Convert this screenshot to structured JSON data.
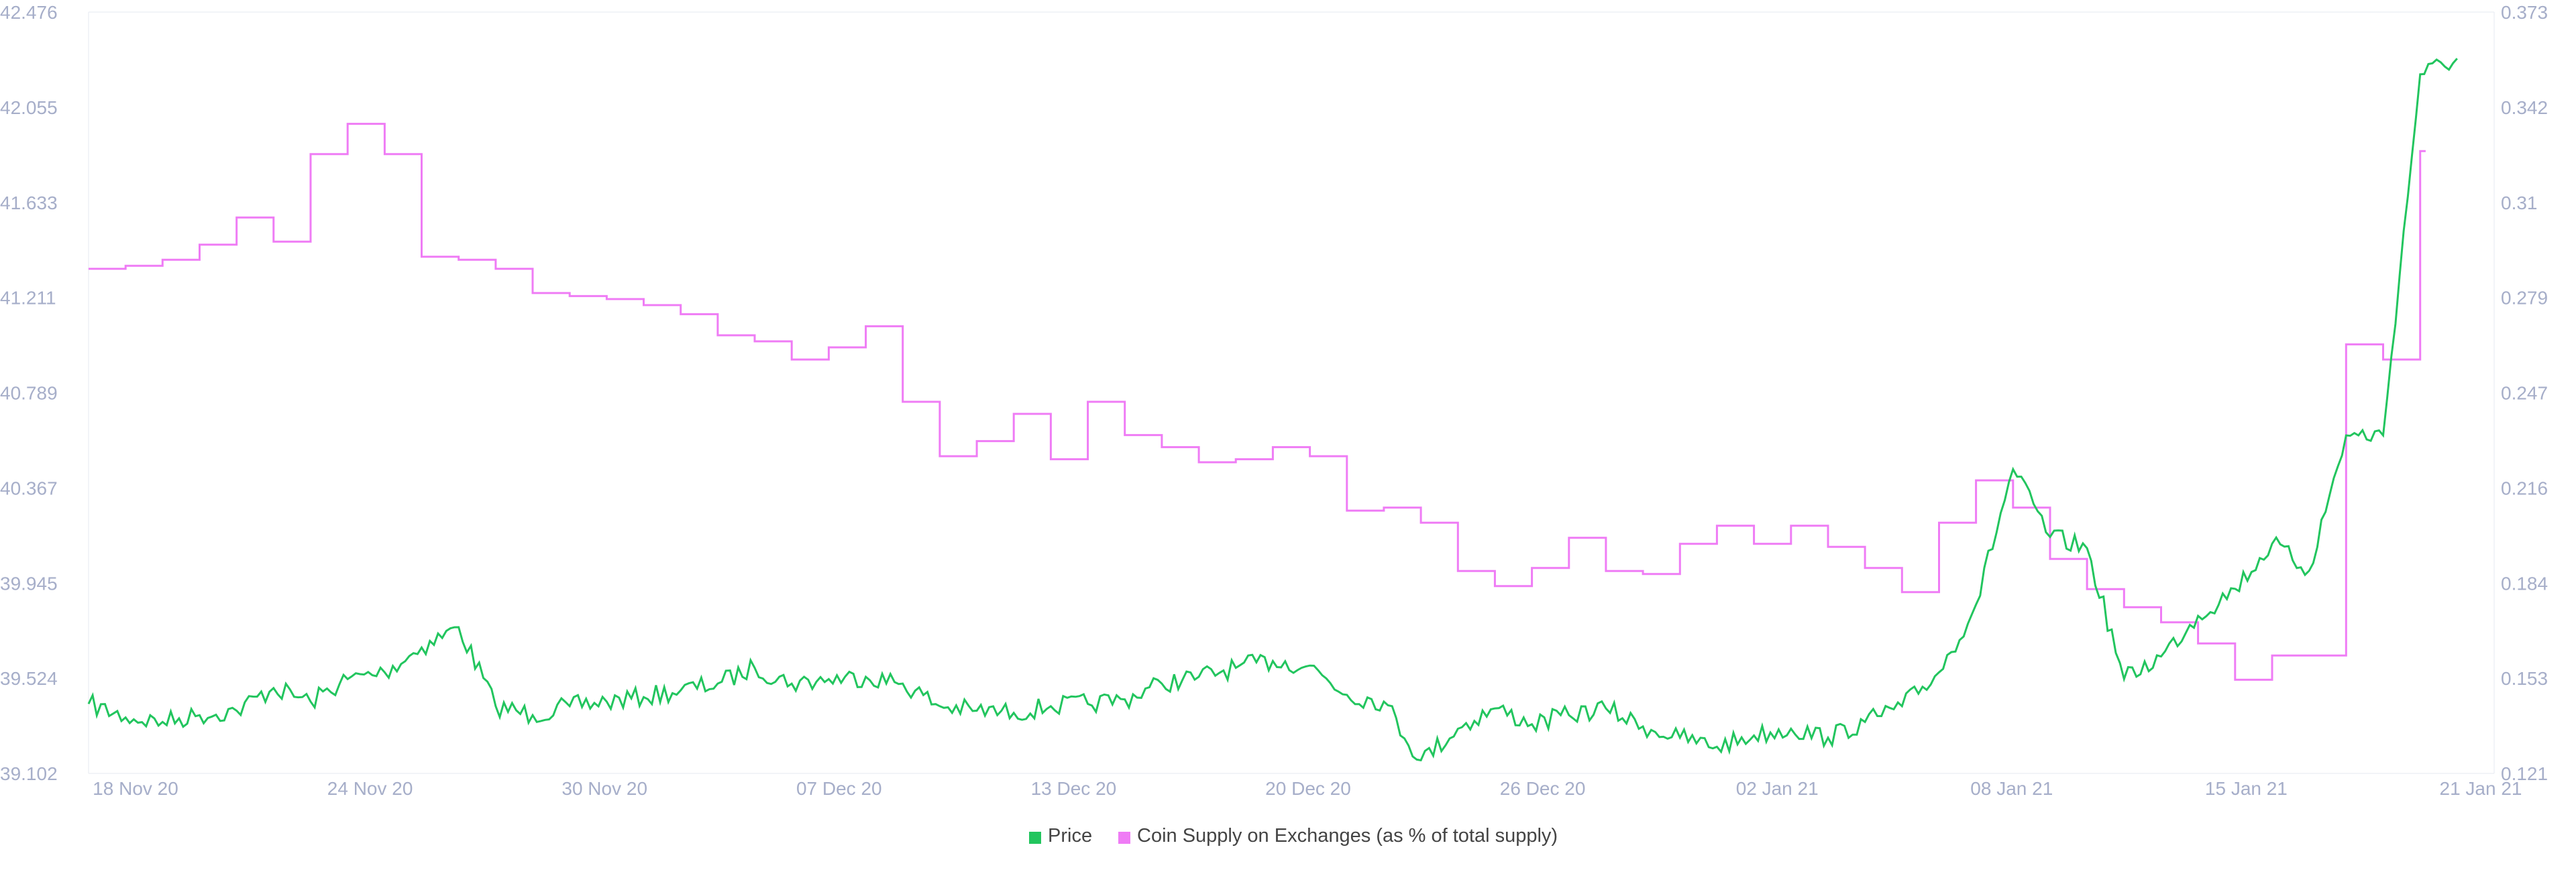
{
  "chart_data": {
    "type": "line",
    "title": "",
    "xlabel": "",
    "ylabel_left": "",
    "ylabel_right": "",
    "x_ticks": [
      "18 Nov 20",
      "24 Nov 20",
      "30 Nov 20",
      "07 Dec 20",
      "13 Dec 20",
      "20 Dec 20",
      "26 Dec 20",
      "02 Jan 21",
      "08 Jan 21",
      "15 Jan 21",
      "21 Jan 21"
    ],
    "x_range": [
      "2020-11-17",
      "2021-01-21"
    ],
    "left_axis": {
      "ticks": [
        "39.102",
        "39.524",
        "39.945",
        "40.367",
        "40.789",
        "41.211",
        "41.633",
        "42.055",
        "42.476"
      ],
      "range": [
        39.102,
        42.476
      ]
    },
    "right_axis": {
      "ticks": [
        "0.121",
        "0.153",
        "0.184",
        "0.216",
        "0.247",
        "0.279",
        "0.31",
        "0.342",
        "0.373"
      ],
      "range": [
        0.121,
        0.373
      ]
    },
    "grid": false,
    "legend_position": "bottom-center",
    "series": [
      {
        "name": "Price",
        "axis": "left",
        "color": "#22c55e",
        "points": [
          [
            "2020-11-17",
            39.41
          ],
          [
            "2020-11-18",
            39.35
          ],
          [
            "2020-11-19",
            39.33
          ],
          [
            "2020-11-20",
            39.36
          ],
          [
            "2020-11-21",
            39.38
          ],
          [
            "2020-11-22",
            39.48
          ],
          [
            "2020-11-23",
            39.42
          ],
          [
            "2020-11-24",
            39.52
          ],
          [
            "2020-11-25",
            39.55
          ],
          [
            "2020-11-26",
            39.66
          ],
          [
            "2020-11-27",
            39.75
          ],
          [
            "2020-11-28",
            39.4
          ],
          [
            "2020-11-29",
            39.36
          ],
          [
            "2020-11-30",
            39.4
          ],
          [
            "2020-12-01",
            39.42
          ],
          [
            "2020-12-02",
            39.44
          ],
          [
            "2020-12-03",
            39.47
          ],
          [
            "2020-12-04",
            39.5
          ],
          [
            "2020-12-05",
            39.57
          ],
          [
            "2020-12-06",
            39.5
          ],
          [
            "2020-12-07",
            39.52
          ],
          [
            "2020-12-08",
            39.53
          ],
          [
            "2020-12-09",
            39.5
          ],
          [
            "2020-12-10",
            39.4
          ],
          [
            "2020-12-11",
            39.38
          ],
          [
            "2020-12-12",
            39.37
          ],
          [
            "2020-12-13",
            39.4
          ],
          [
            "2020-12-14",
            39.41
          ],
          [
            "2020-12-15",
            39.43
          ],
          [
            "2020-12-16",
            39.5
          ],
          [
            "2020-12-17",
            39.53
          ],
          [
            "2020-12-18",
            39.57
          ],
          [
            "2020-12-19",
            39.6
          ],
          [
            "2020-12-20",
            39.58
          ],
          [
            "2020-12-21",
            39.45
          ],
          [
            "2020-12-22",
            39.42
          ],
          [
            "2020-12-23",
            39.16
          ],
          [
            "2020-12-24",
            39.3
          ],
          [
            "2020-12-25",
            39.39
          ],
          [
            "2020-12-26",
            39.32
          ],
          [
            "2020-12-27",
            39.36
          ],
          [
            "2020-12-28",
            39.39
          ],
          [
            "2020-12-29",
            39.31
          ],
          [
            "2020-12-30",
            39.26
          ],
          [
            "2020-12-31",
            39.22
          ],
          [
            "2021-01-01",
            39.27
          ],
          [
            "2021-01-02",
            39.3
          ],
          [
            "2021-01-03",
            39.26
          ],
          [
            "2021-01-04",
            39.33
          ],
          [
            "2021-01-05",
            39.4
          ],
          [
            "2021-01-06",
            39.55
          ],
          [
            "2021-01-07",
            39.85
          ],
          [
            "2021-01-08",
            40.45
          ],
          [
            "2021-01-09",
            40.15
          ],
          [
            "2021-01-10",
            40.1
          ],
          [
            "2021-01-11",
            39.52
          ],
          [
            "2021-01-12",
            39.62
          ],
          [
            "2021-01-13",
            39.8
          ],
          [
            "2021-01-14",
            39.92
          ],
          [
            "2021-01-15",
            40.12
          ],
          [
            "2021-01-16",
            40.0
          ],
          [
            "2021-01-17",
            40.6
          ],
          [
            "2021-01-18",
            40.6
          ],
          [
            "2021-01-19",
            42.2
          ],
          [
            "2021-01-20",
            42.27
          ]
        ]
      },
      {
        "name": "Coin Supply on Exchanges (as % of total supply)",
        "axis": "right",
        "color": "#ef7cf5",
        "points": [
          [
            "2020-11-17",
            0.288
          ],
          [
            "2020-11-18",
            0.289
          ],
          [
            "2020-11-19",
            0.291
          ],
          [
            "2020-11-20",
            0.296
          ],
          [
            "2020-11-21",
            0.305
          ],
          [
            "2020-11-22",
            0.297
          ],
          [
            "2020-11-23",
            0.326
          ],
          [
            "2020-11-24",
            0.336
          ],
          [
            "2020-11-25",
            0.326
          ],
          [
            "2020-11-26",
            0.292
          ],
          [
            "2020-11-27",
            0.291
          ],
          [
            "2020-11-28",
            0.288
          ],
          [
            "2020-11-29",
            0.28
          ],
          [
            "2020-11-30",
            0.279
          ],
          [
            "2020-12-01",
            0.278
          ],
          [
            "2020-12-02",
            0.276
          ],
          [
            "2020-12-03",
            0.273
          ],
          [
            "2020-12-04",
            0.266
          ],
          [
            "2020-12-05",
            0.264
          ],
          [
            "2020-12-06",
            0.258
          ],
          [
            "2020-12-07",
            0.262
          ],
          [
            "2020-12-08",
            0.269
          ],
          [
            "2020-12-09",
            0.244
          ],
          [
            "2020-12-10",
            0.226
          ],
          [
            "2020-12-11",
            0.231
          ],
          [
            "2020-12-12",
            0.24
          ],
          [
            "2020-12-13",
            0.225
          ],
          [
            "2020-12-14",
            0.244
          ],
          [
            "2020-12-15",
            0.233
          ],
          [
            "2020-12-16",
            0.229
          ],
          [
            "2020-12-17",
            0.224
          ],
          [
            "2020-12-18",
            0.225
          ],
          [
            "2020-12-19",
            0.229
          ],
          [
            "2020-12-20",
            0.226
          ],
          [
            "2020-12-21",
            0.208
          ],
          [
            "2020-12-22",
            0.209
          ],
          [
            "2020-12-23",
            0.204
          ],
          [
            "2020-12-24",
            0.188
          ],
          [
            "2020-12-25",
            0.183
          ],
          [
            "2020-12-26",
            0.189
          ],
          [
            "2020-12-27",
            0.199
          ],
          [
            "2020-12-28",
            0.188
          ],
          [
            "2020-12-29",
            0.187
          ],
          [
            "2020-12-30",
            0.197
          ],
          [
            "2020-12-31",
            0.203
          ],
          [
            "2021-01-01",
            0.197
          ],
          [
            "2021-01-02",
            0.203
          ],
          [
            "2021-01-03",
            0.196
          ],
          [
            "2021-01-04",
            0.189
          ],
          [
            "2021-01-05",
            0.181
          ],
          [
            "2021-01-06",
            0.204
          ],
          [
            "2021-01-07",
            0.218
          ],
          [
            "2021-01-08",
            0.209
          ],
          [
            "2021-01-09",
            0.192
          ],
          [
            "2021-01-10",
            0.182
          ],
          [
            "2021-01-11",
            0.176
          ],
          [
            "2021-01-12",
            0.171
          ],
          [
            "2021-01-13",
            0.164
          ],
          [
            "2021-01-14",
            0.152
          ],
          [
            "2021-01-15",
            0.16
          ],
          [
            "2021-01-16",
            0.16
          ],
          [
            "2021-01-17",
            0.263
          ],
          [
            "2021-01-18",
            0.258
          ],
          [
            "2021-01-19",
            0.327
          ]
        ]
      }
    ]
  },
  "legend": {
    "items": [
      {
        "label": "Price",
        "color": "#22c55e"
      },
      {
        "label": "Coin Supply on Exchanges (as % of total supply)",
        "color": "#ef7cf5"
      }
    ]
  }
}
